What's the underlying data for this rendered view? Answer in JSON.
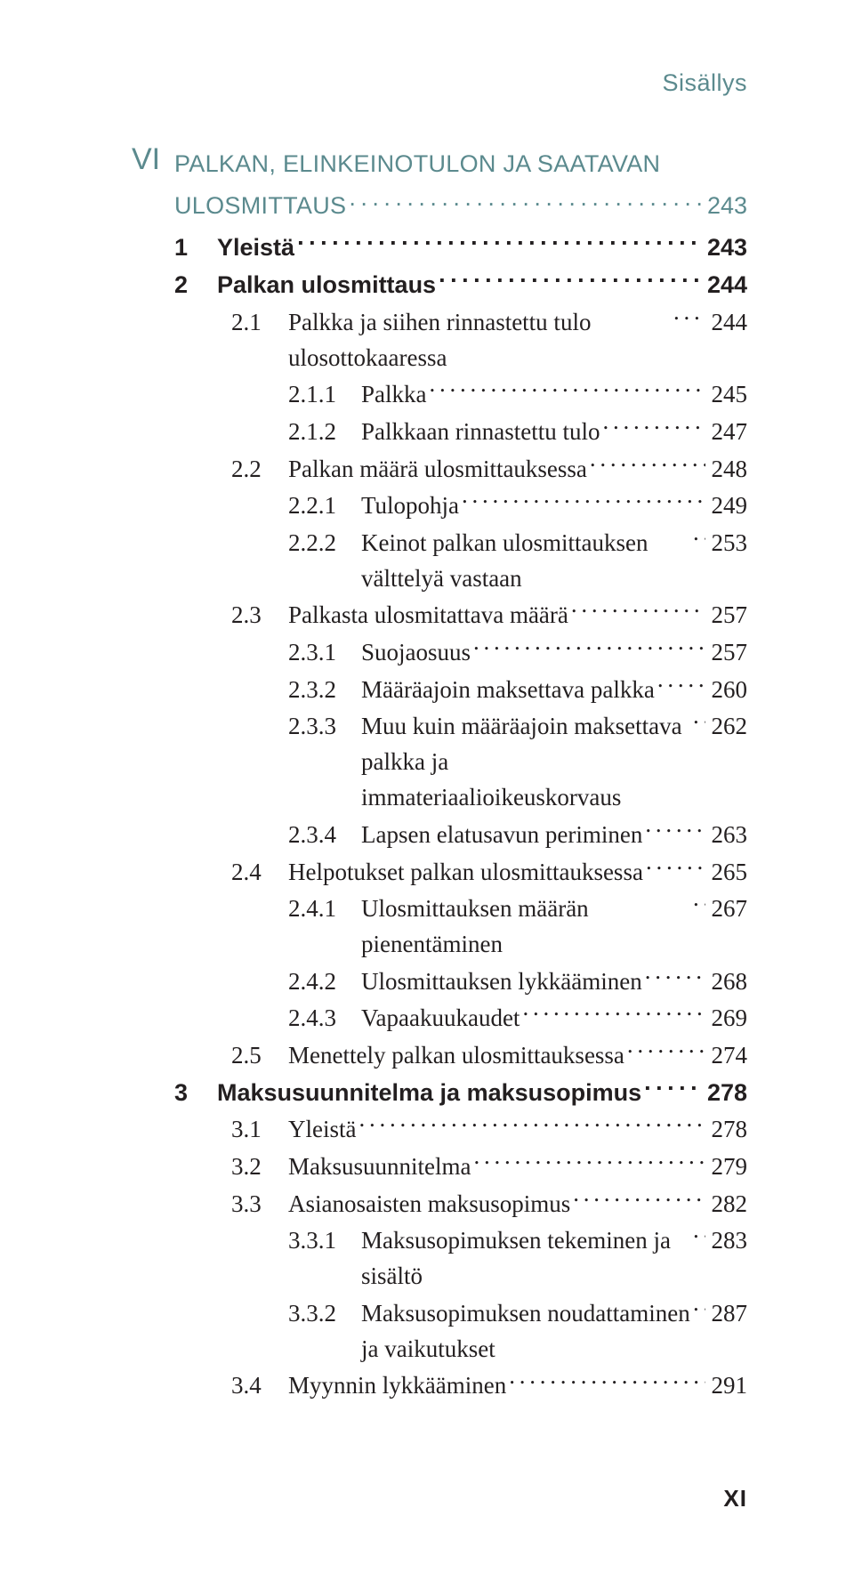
{
  "header": "Sisällys",
  "section": {
    "prefix": "VI",
    "title_l1": "PALKAN, ELINKEINOTULON JA SAATAVAN",
    "title_l2": "ULOSMITTAUS",
    "page": "243"
  },
  "entries": [
    {
      "indent": 1,
      "num": "1",
      "text": "Yleistä",
      "page": "243",
      "bold": true
    },
    {
      "indent": 1,
      "num": "2",
      "text": "Palkan ulosmittaus",
      "page": "244",
      "bold": true
    },
    {
      "indent": 2,
      "num": "2.1",
      "text": "Palkka ja siihen rinnastettu tulo ulosotto­kaaressa",
      "page": "244",
      "wrap": true
    },
    {
      "indent": 3,
      "num": "2.1.1",
      "text": "Palkka",
      "page": "245"
    },
    {
      "indent": 3,
      "num": "2.1.2",
      "text": "Palkkaan rinnastettu tulo",
      "page": "247"
    },
    {
      "indent": 2,
      "num": "2.2",
      "text": "Palkan määrä ulosmittauksessa",
      "page": "248"
    },
    {
      "indent": 3,
      "num": "2.2.1",
      "text": "Tulopohja",
      "page": "249"
    },
    {
      "indent": 3,
      "num": "2.2.2",
      "text": "Keinot palkan ulosmittauksen välttelyä vastaan",
      "page": "253",
      "wrap": true
    },
    {
      "indent": 2,
      "num": "2.3",
      "text": "Palkasta ulosmitattava määrä",
      "page": "257"
    },
    {
      "indent": 3,
      "num": "2.3.1",
      "text": "Suojaosuus",
      "page": "257"
    },
    {
      "indent": 3,
      "num": "2.3.2",
      "text": "Määräajoin maksettava palkka",
      "page": "260"
    },
    {
      "indent": 3,
      "num": "2.3.3",
      "text": "Muu kuin määräajoin maksettava palkka ja immateriaalioikeuskorvaus",
      "page": "262",
      "wrap": true
    },
    {
      "indent": 3,
      "num": "2.3.4",
      "text": "Lapsen elatusavun periminen",
      "page": "263"
    },
    {
      "indent": 2,
      "num": "2.4",
      "text": "Helpotukset palkan ulosmittauksessa",
      "page": "265"
    },
    {
      "indent": 3,
      "num": "2.4.1",
      "text": "Ulosmittauksen määrän pienentäminen",
      "page": "267",
      "wrap": true
    },
    {
      "indent": 3,
      "num": "2.4.2",
      "text": "Ulosmittauksen lykkääminen",
      "page": "268"
    },
    {
      "indent": 3,
      "num": "2.4.3",
      "text": "Vapaakuukaudet",
      "page": "269"
    },
    {
      "indent": 2,
      "num": "2.5",
      "text": "Menettely palkan ulosmittauksessa",
      "page": "274"
    },
    {
      "indent": 1,
      "num": "3",
      "text": "Maksusuunnitelma ja maksusopimus",
      "page": "278",
      "bold": true
    },
    {
      "indent": 2,
      "num": "3.1",
      "text": "Yleistä",
      "page": "278"
    },
    {
      "indent": 2,
      "num": "3.2",
      "text": "Maksusuunnitelma",
      "page": "279"
    },
    {
      "indent": 2,
      "num": "3.3",
      "text": "Asianosaisten maksusopimus",
      "page": "282"
    },
    {
      "indent": 3,
      "num": "3.3.1",
      "text": "Maksusopimuksen tekeminen ja sisältö",
      "page": "283",
      "wrap": true
    },
    {
      "indent": 3,
      "num": "3.3.2",
      "text": "Maksusopimuksen noudattaminen ja vaikutukset",
      "page": "287",
      "wrap": true
    },
    {
      "indent": 2,
      "num": "3.4",
      "text": "Myynnin lykkääminen",
      "page": "291"
    }
  ],
  "footer_page": "XI",
  "colors": {
    "accent": "#5b8a8e",
    "text": "#231f20",
    "background": "#ffffff"
  },
  "fonts": {
    "body_size_pt": 27,
    "title_size_pt": 34,
    "header_size_pt": 27
  }
}
